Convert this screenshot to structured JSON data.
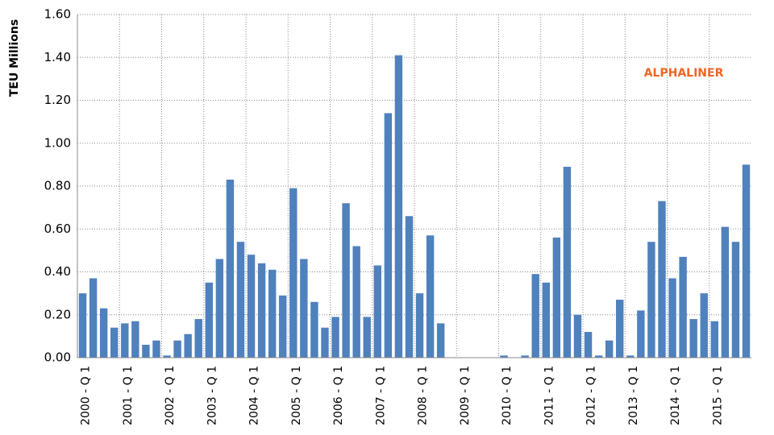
{
  "chart_data": {
    "type": "bar",
    "y_label": "TEU Millions",
    "annotation": "ALPHALINER",
    "color": "#4f81bd",
    "categories": [
      "2000 - Q 1",
      null,
      null,
      null,
      "2001 - Q 1",
      null,
      null,
      null,
      "2002 - Q 1",
      null,
      null,
      null,
      "2003 - Q 1",
      null,
      null,
      null,
      "2004 - Q 1",
      null,
      null,
      null,
      "2005 - Q 1",
      null,
      null,
      null,
      "2006 - Q 1",
      null,
      null,
      null,
      "2007 - Q 1",
      null,
      null,
      null,
      "2008 - Q 1",
      null,
      null,
      null,
      "2009 - Q 1",
      null,
      null,
      null,
      "2010 - Q 1",
      null,
      null,
      null,
      "2011 - Q 1",
      null,
      null,
      null,
      "2012 - Q 1",
      null,
      null,
      null,
      "2013 - Q 1",
      null,
      null,
      null,
      "2014 - Q 1",
      null,
      null,
      null,
      "2015 - Q 1",
      null,
      null,
      null
    ],
    "values": [
      0.3,
      0.37,
      0.23,
      0.14,
      0.16,
      0.17,
      0.06,
      0.08,
      0.01,
      0.08,
      0.11,
      0.18,
      0.35,
      0.46,
      0.83,
      0.54,
      0.48,
      0.44,
      0.41,
      0.29,
      0.79,
      0.46,
      0.26,
      0.14,
      0.19,
      0.72,
      0.52,
      0.19,
      0.43,
      1.14,
      1.41,
      0.66,
      0.3,
      0.57,
      0.16,
      0,
      0,
      0,
      0,
      0,
      0.01,
      0,
      0.01,
      0.39,
      0.35,
      0.56,
      0.89,
      0.2,
      0.12,
      0.01,
      0.08,
      0.27,
      0.01,
      0.22,
      0.54,
      0.73,
      0.37,
      0.47,
      0.18,
      0.3,
      0.17,
      0.61,
      0.54,
      0.9
    ],
    "ylim": [
      0,
      1.6
    ],
    "yticks": [
      {
        "value": 0,
        "label": "0.00"
      },
      {
        "value": 0.2,
        "label": "0.20"
      },
      {
        "value": 0.4,
        "label": "0.40"
      },
      {
        "value": 0.6,
        "label": "0.60"
      },
      {
        "value": 0.8,
        "label": "0.80"
      },
      {
        "value": 1.0,
        "label": "1.00"
      },
      {
        "value": 1.2,
        "label": "1.20"
      },
      {
        "value": 1.4,
        "label": "1.40"
      },
      {
        "value": 1.6,
        "label": "1.60"
      }
    ],
    "grid": true
  }
}
